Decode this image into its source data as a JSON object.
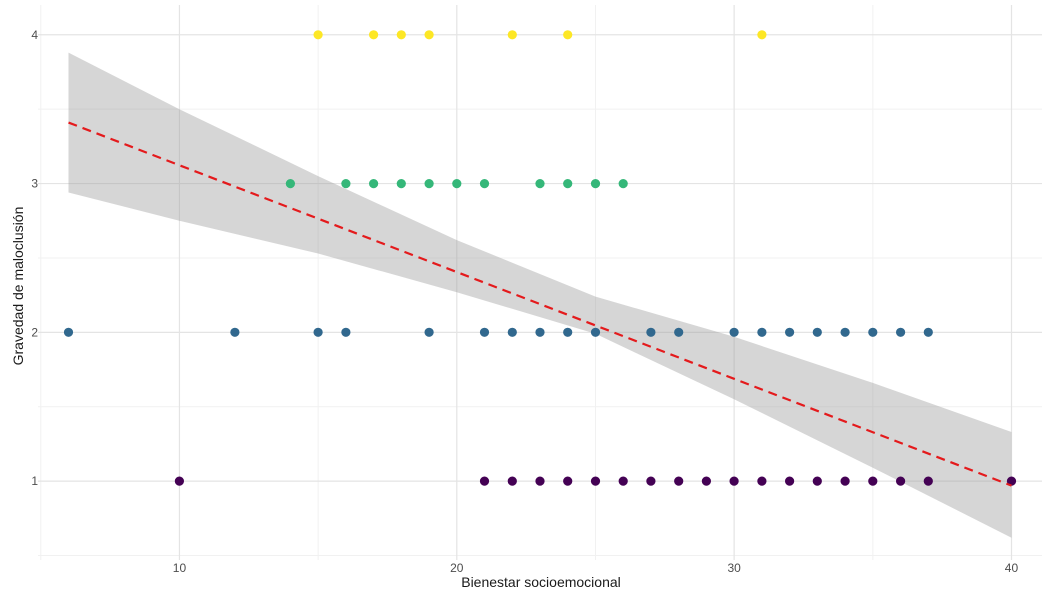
{
  "chart_data": {
    "type": "scatter",
    "title": "",
    "xlabel": "Bienestar socioemocional",
    "ylabel": "Gravedad de maloclusión",
    "xlim": [
      4.9,
      41.1
    ],
    "ylim": [
      0.47,
      4.2
    ],
    "x_ticks": [
      10,
      20,
      30,
      40
    ],
    "y_ticks": [
      1,
      2,
      3,
      4
    ],
    "grid": true,
    "legend": "none",
    "series": [
      {
        "level": 1,
        "color": "#440154",
        "x": [
          10,
          21,
          22,
          23,
          24,
          25,
          26,
          27,
          28,
          29,
          30,
          31,
          32,
          33,
          34,
          35,
          36,
          37,
          40
        ],
        "y": [
          1,
          1,
          1,
          1,
          1,
          1,
          1,
          1,
          1,
          1,
          1,
          1,
          1,
          1,
          1,
          1,
          1,
          1,
          1
        ]
      },
      {
        "level": 2,
        "color": "#31688e",
        "x": [
          6,
          12,
          15,
          16,
          19,
          21,
          22,
          23,
          24,
          25,
          27,
          28,
          30,
          31,
          32,
          33,
          34,
          35,
          36,
          37
        ],
        "y": [
          2,
          2,
          2,
          2,
          2,
          2,
          2,
          2,
          2,
          2,
          2,
          2,
          2,
          2,
          2,
          2,
          2,
          2,
          2,
          2
        ]
      },
      {
        "level": 3,
        "color": "#35b779",
        "x": [
          14,
          16,
          17,
          18,
          19,
          20,
          21,
          23,
          24,
          25,
          26
        ],
        "y": [
          3,
          3,
          3,
          3,
          3,
          3,
          3,
          3,
          3,
          3,
          3
        ]
      },
      {
        "level": 4,
        "color": "#fde725",
        "x": [
          15,
          17,
          18,
          19,
          22,
          24,
          31
        ],
        "y": [
          4,
          4,
          4,
          4,
          4,
          4,
          4
        ]
      }
    ],
    "regression": {
      "style": "dashed",
      "color": "#e41a1c",
      "x": [
        6,
        40
      ],
      "y": [
        3.41,
        0.97
      ]
    },
    "confidence_band": {
      "color": "#999999",
      "x": [
        6,
        10,
        15,
        20,
        25,
        30,
        35,
        40
      ],
      "upper": [
        3.88,
        3.5,
        3.05,
        2.62,
        2.24,
        1.97,
        1.66,
        1.33
      ],
      "lower": [
        2.94,
        2.75,
        2.53,
        2.27,
        1.99,
        1.55,
        1.09,
        0.62
      ]
    }
  }
}
